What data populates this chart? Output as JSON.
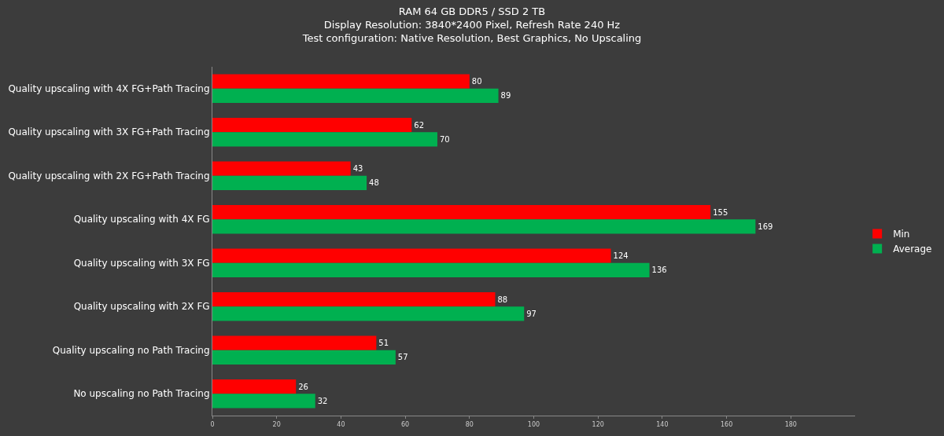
{
  "chart_data": {
    "type": "bar",
    "orientation": "horizontal",
    "title": "RAM 64 GB DDR5 / SSD 2 TB\nDisplay Resolution: 3840*2400 Pixel, Refresh Rate 240 Hz\nTest configuration: Native Resolution, Best Graphics, No Upscaling",
    "categories": [
      "Quality upscaling with 4X FG+Path Tracing",
      "Quality upscaling with 3X FG+Path Tracing",
      "Quality upscaling with 2X FG+Path Tracing",
      "Quality upscaling with 4X FG",
      "Quality upscaling with 3X FG",
      "Quality upscaling with 2X FG",
      "Quality upscaling no Path Tracing",
      "No upscaling no Path Tracing"
    ],
    "series": [
      {
        "name": "Min",
        "color": "#ff0000",
        "values": [
          80,
          62,
          43,
          155,
          124,
          88,
          51,
          26
        ]
      },
      {
        "name": "Average",
        "color": "#00b050",
        "values": [
          89,
          70,
          48,
          169,
          136,
          97,
          57,
          32
        ]
      }
    ],
    "xlim": [
      0,
      200
    ],
    "xticks": [
      0,
      20,
      40,
      60,
      80,
      100,
      120,
      140,
      160,
      180
    ],
    "data_labels": true,
    "grid": false,
    "legend": "right"
  }
}
